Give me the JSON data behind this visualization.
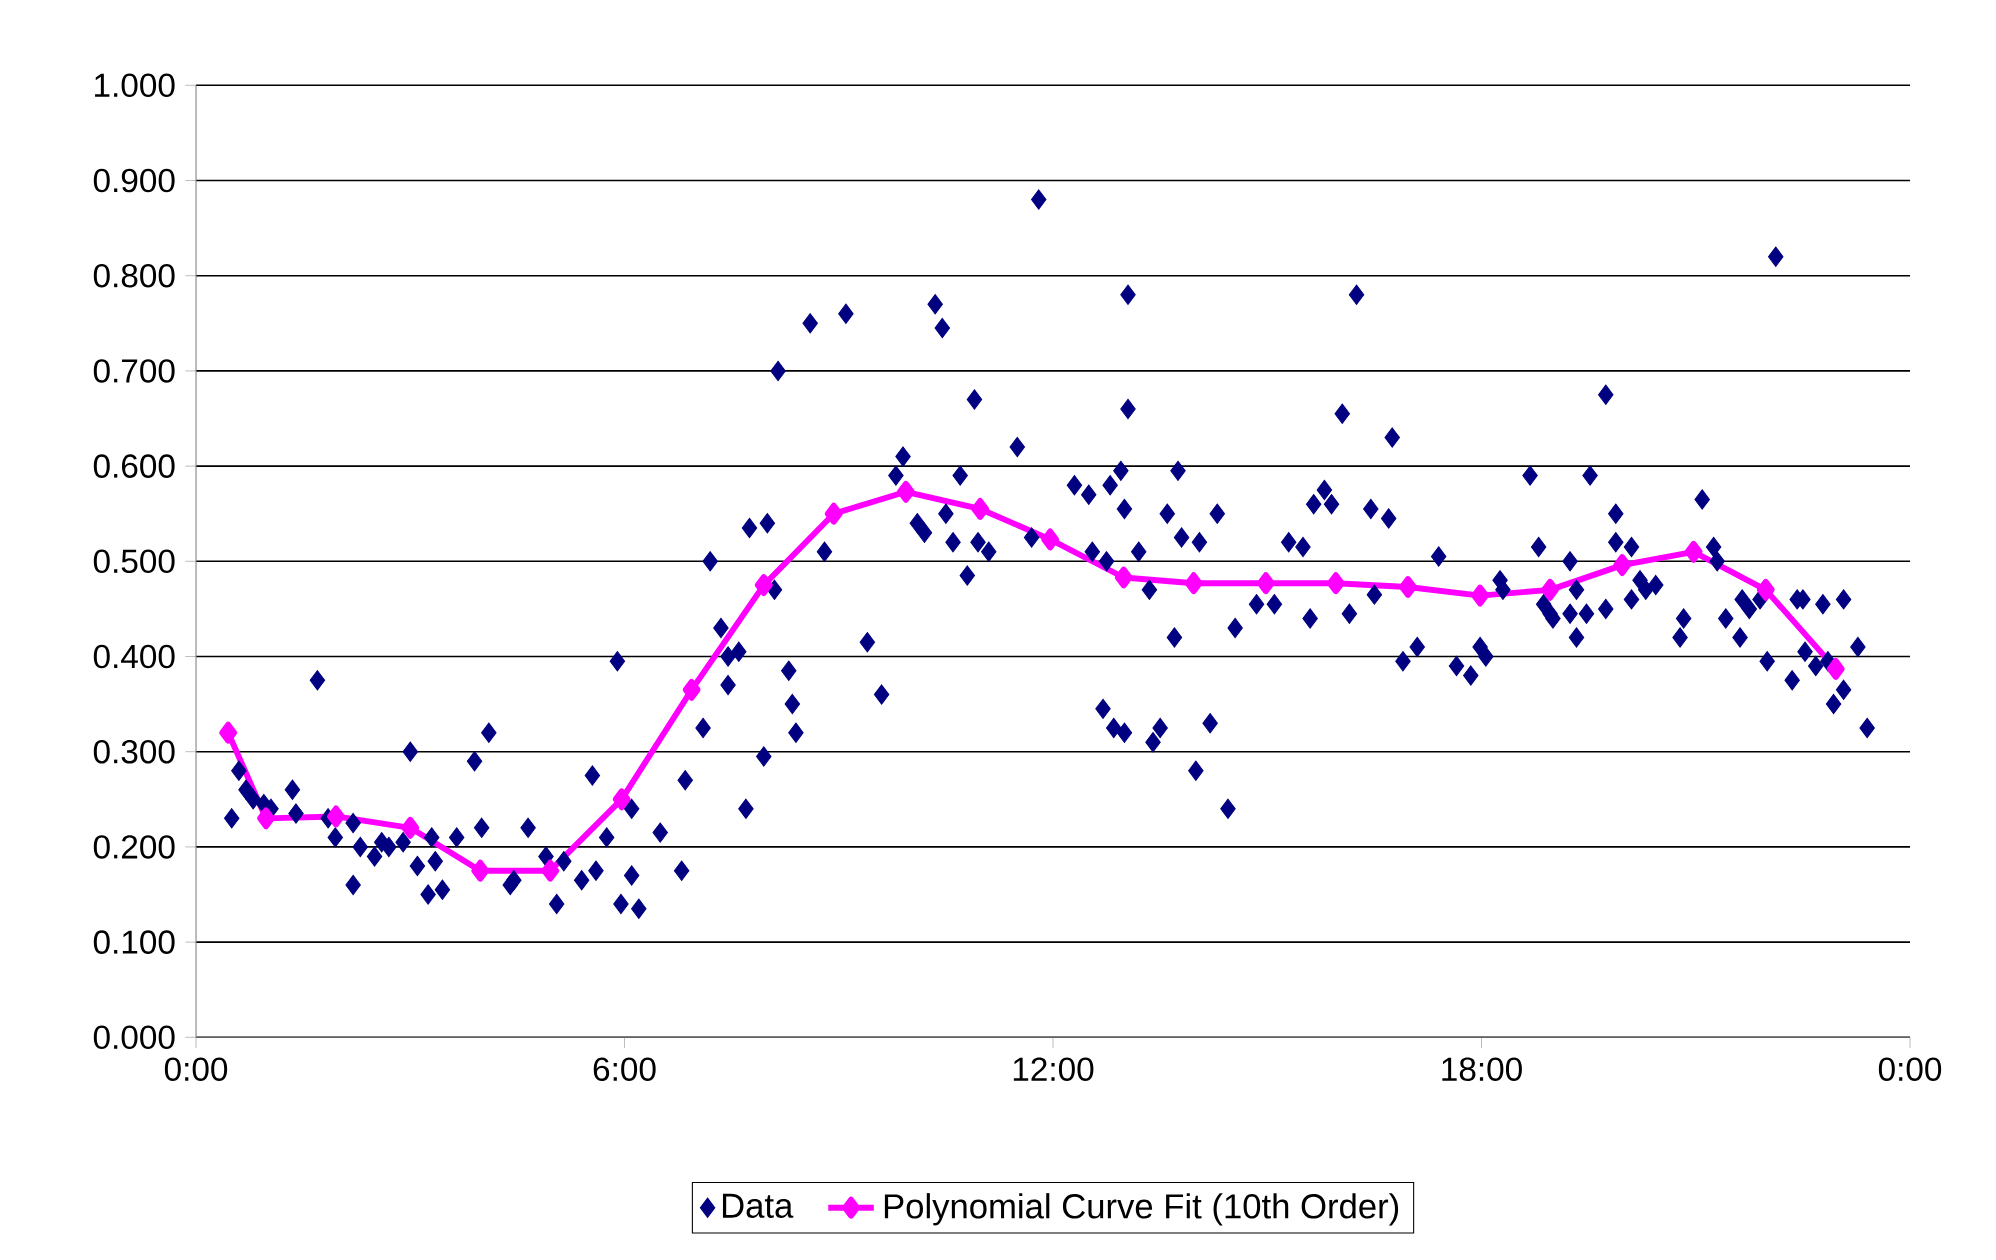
{
  "chart_data": {
    "type": "scatter",
    "marker": "diamond",
    "grid": "y",
    "legend": "bottom",
    "xlim": [
      0,
      24
    ],
    "ylim": [
      0,
      1
    ],
    "xticks": [
      {
        "value": 0,
        "label": "0:00"
      },
      {
        "value": 6,
        "label": "6:00"
      },
      {
        "value": 12,
        "label": "12:00"
      },
      {
        "value": 18,
        "label": "18:00"
      },
      {
        "value": 24,
        "label": "0:00"
      }
    ],
    "yticks": [
      {
        "value": 0,
        "label": "0.000"
      },
      {
        "value": 0.1,
        "label": "0.100"
      },
      {
        "value": 0.2,
        "label": "0.200"
      },
      {
        "value": 0.3,
        "label": "0.300"
      },
      {
        "value": 0.4,
        "label": "0.400"
      },
      {
        "value": 0.5,
        "label": "0.500"
      },
      {
        "value": 0.6,
        "label": "0.600"
      },
      {
        "value": 0.7,
        "label": "0.700"
      },
      {
        "value": 0.8,
        "label": "0.800"
      },
      {
        "value": 0.9,
        "label": "0.900"
      },
      {
        "value": 1,
        "label": "1.000"
      }
    ],
    "series": [
      {
        "name": "Data",
        "color": "#000080",
        "x": [
          0.5,
          0.6,
          0.7,
          0.8,
          0.95,
          1.05,
          1.35,
          1.4,
          1.7,
          1.85,
          1.95,
          2.2,
          2.3,
          2.2,
          2.5,
          2.6,
          2.7,
          2.9,
          3.1,
          3.0,
          3.25,
          3.35,
          3.45,
          3.3,
          3.65,
          3.9,
          4.0,
          4.1,
          4.4,
          4.45,
          4.65,
          4.9,
          5.05,
          5.15,
          5.4,
          5.55,
          5.6,
          5.75,
          5.9,
          5.95,
          6.1,
          6.1,
          6.2,
          6.5,
          6.8,
          6.85,
          7.1,
          7.2,
          7.35,
          7.45,
          7.45,
          7.6,
          7.7,
          7.75,
          7.95,
          8.0,
          8.1,
          8.15,
          8.3,
          8.35,
          8.4,
          8.6,
          8.8,
          9.1,
          9.4,
          9.6,
          9.8,
          9.9,
          10.1,
          10.2,
          10.35,
          10.45,
          10.5,
          10.6,
          10.7,
          10.8,
          10.9,
          10.95,
          11.1,
          11.5,
          11.7,
          11.8,
          12.3,
          12.5,
          12.55,
          12.7,
          12.75,
          12.8,
          12.85,
          12.95,
          13.0,
          13.05,
          13.05,
          13.0,
          13.2,
          13.35,
          13.4,
          13.5,
          13.6,
          13.7,
          13.75,
          13.8,
          14.0,
          14.05,
          14.2,
          14.3,
          14.45,
          14.55,
          14.85,
          15.1,
          15.3,
          15.5,
          15.6,
          15.65,
          15.8,
          15.9,
          16.05,
          16.15,
          16.25,
          16.45,
          16.5,
          16.7,
          16.75,
          16.9,
          17.1,
          17.4,
          17.65,
          17.85,
          17.98,
          18.06,
          18.26,
          18.3,
          18.68,
          18.8,
          18.87,
          18.96,
          19.0,
          19.24,
          19.24,
          19.33,
          19.33,
          19.47,
          19.52,
          19.74,
          19.74,
          19.88,
          19.88,
          20.1,
          20.1,
          20.22,
          20.3,
          20.44,
          20.78,
          20.83,
          21.09,
          21.25,
          21.3,
          21.42,
          21.62,
          21.65,
          21.75,
          21.9,
          22.0,
          22.12,
          22.42,
          22.35,
          22.5,
          22.53,
          22.68,
          22.78,
          22.85,
          22.93,
          23.07,
          23.07,
          23.27,
          23.4
        ],
        "values": [
          0.23,
          0.28,
          0.26,
          0.25,
          0.245,
          0.24,
          0.26,
          0.235,
          0.375,
          0.23,
          0.21,
          0.225,
          0.2,
          0.16,
          0.19,
          0.205,
          0.2,
          0.205,
          0.18,
          0.3,
          0.15,
          0.185,
          0.155,
          0.21,
          0.21,
          0.29,
          0.22,
          0.32,
          0.16,
          0.165,
          0.22,
          0.19,
          0.14,
          0.185,
          0.165,
          0.275,
          0.175,
          0.21,
          0.395,
          0.14,
          0.24,
          0.17,
          0.135,
          0.215,
          0.175,
          0.27,
          0.325,
          0.5,
          0.43,
          0.37,
          0.4,
          0.405,
          0.24,
          0.535,
          0.295,
          0.54,
          0.47,
          0.7,
          0.385,
          0.35,
          0.32,
          0.75,
          0.51,
          0.76,
          0.415,
          0.36,
          0.59,
          0.61,
          0.54,
          0.53,
          0.77,
          0.745,
          0.55,
          0.52,
          0.59,
          0.485,
          0.67,
          0.52,
          0.51,
          0.62,
          0.525,
          0.88,
          0.58,
          0.57,
          0.51,
          0.345,
          0.5,
          0.58,
          0.325,
          0.595,
          0.555,
          0.66,
          0.78,
          0.32,
          0.51,
          0.47,
          0.31,
          0.325,
          0.55,
          0.42,
          0.595,
          0.525,
          0.28,
          0.52,
          0.33,
          0.55,
          0.24,
          0.43,
          0.455,
          0.455,
          0.52,
          0.515,
          0.44,
          0.56,
          0.575,
          0.56,
          0.655,
          0.445,
          0.78,
          0.555,
          0.465,
          0.545,
          0.63,
          0.395,
          0.41,
          0.505,
          0.39,
          0.38,
          0.41,
          0.4,
          0.48,
          0.47,
          0.59,
          0.515,
          0.455,
          0.445,
          0.44,
          0.5,
          0.445,
          0.42,
          0.47,
          0.445,
          0.59,
          0.675,
          0.45,
          0.55,
          0.52,
          0.515,
          0.46,
          0.48,
          0.47,
          0.475,
          0.42,
          0.44,
          0.565,
          0.515,
          0.5,
          0.44,
          0.42,
          0.46,
          0.45,
          0.46,
          0.395,
          0.82,
          0.46,
          0.375,
          0.46,
          0.405,
          0.39,
          0.455,
          0.395,
          0.35,
          0.46,
          0.365,
          0.41,
          0.325
        ]
      },
      {
        "name": "Polynomial Curve Fit (10th Order)",
        "type": "line",
        "color": "#ff00ff",
        "x": [
          0.45,
          0.98,
          1.96,
          3.0,
          3.98,
          4.96,
          5.96,
          6.94,
          7.95,
          8.93,
          9.94,
          10.98,
          11.96,
          12.99,
          13.97,
          14.98,
          15.96,
          16.97,
          17.98,
          18.96,
          19.97,
          20.97,
          21.98,
          22.96
        ],
        "values": [
          0.32,
          0.23,
          0.232,
          0.22,
          0.175,
          0.175,
          0.25,
          0.365,
          0.475,
          0.55,
          0.573,
          0.555,
          0.523,
          0.483,
          0.477,
          0.477,
          0.477,
          0.473,
          0.464,
          0.47,
          0.496,
          0.51,
          0.47,
          0.387
        ]
      }
    ]
  }
}
